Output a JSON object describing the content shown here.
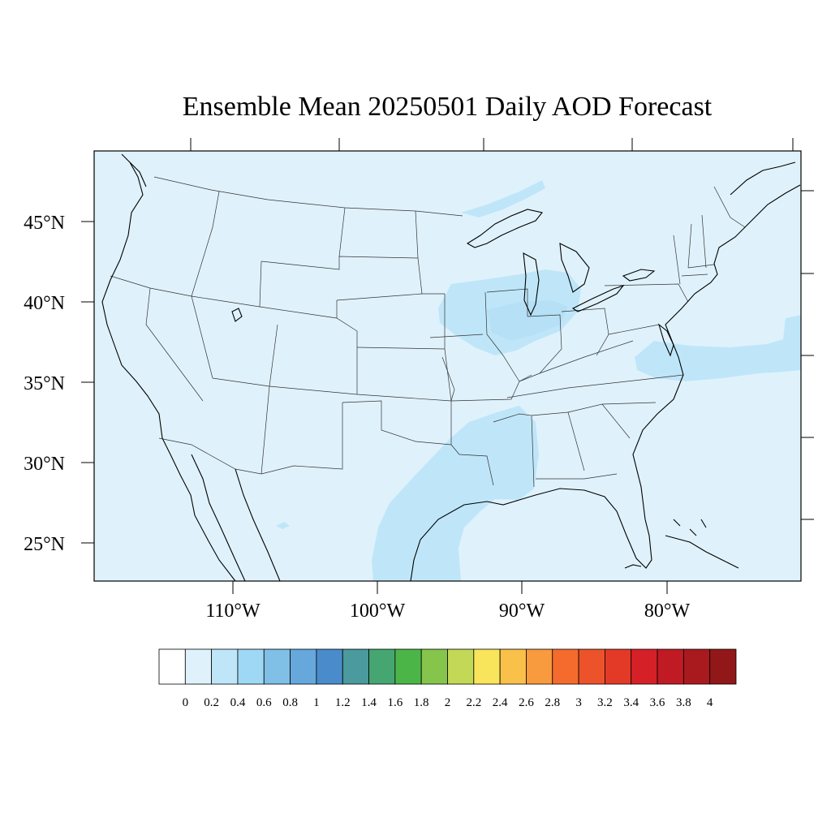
{
  "title": "Ensemble Mean 20250501 Daily AOD Forecast",
  "lat_labels": [
    "45°N",
    "40°N",
    "35°N",
    "30°N",
    "25°N"
  ],
  "lon_labels": [
    "110°W",
    "100°W",
    "90°W",
    "80°W"
  ],
  "colorbar": {
    "labels": [
      "0",
      "0.2",
      "0.4",
      "0.6",
      "0.8",
      "1",
      "1.2",
      "1.4",
      "1.6",
      "1.8",
      "2",
      "2.2",
      "2.4",
      "2.6",
      "2.8",
      "3",
      "3.2",
      "3.4",
      "3.6",
      "3.8",
      "4"
    ],
    "colors": [
      "#ffffff",
      "#dff2fc",
      "#bfe6f8",
      "#9fd8f4",
      "#80bfe6",
      "#66a8dc",
      "#4a8ccb",
      "#4a9a9e",
      "#46a672",
      "#4cb548",
      "#86c54c",
      "#c3d857",
      "#f8e55b",
      "#f9c04a",
      "#f89a3e",
      "#f56b2d",
      "#ec532a",
      "#e33a28",
      "#d62028",
      "#c01b24",
      "#a91a1f",
      "#911718"
    ]
  },
  "colors": {
    "background_field": "#dff2fc",
    "elevated_field": "#bfe6f8"
  }
}
